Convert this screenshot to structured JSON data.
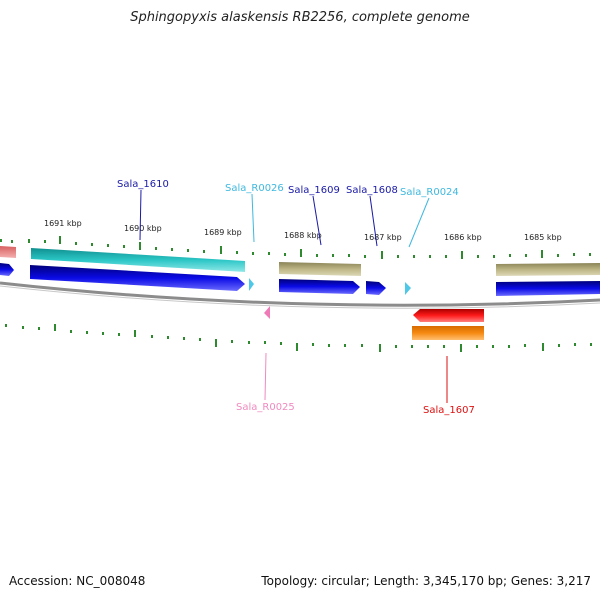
{
  "title": "Sphingopyxis alaskensis RB2256, complete genome",
  "footer": {
    "accession": "Accession: NC_008048",
    "topology": "Topology: circular; Length: 3,345,170 bp; Genes: 3,217"
  },
  "colors": {
    "cds_blue": "#0a0ae6",
    "cds_red": "#ee1111",
    "rrna_cyan": "#4dc8e8",
    "rrna_pink": "#f07ab8",
    "teal_feature": "#21b3b3",
    "olive_feature": "#b8b07c",
    "orange_feature": "#f08a10",
    "backbone": "#8c8c8c",
    "tick_green": "#2f8a2f"
  },
  "ticks": [
    {
      "label": "1691 kbp"
    },
    {
      "label": "1690 kbp"
    },
    {
      "label": "1689 kbp"
    },
    {
      "label": "1688 kbp"
    },
    {
      "label": "1687 kbp"
    },
    {
      "label": "1686 kbp"
    },
    {
      "label": "1685 kbp"
    }
  ],
  "gene_labels": [
    {
      "text": "Sala_1610",
      "color": "#1a1aa8"
    },
    {
      "text": "Sala_R0026",
      "color": "#3fb8e0"
    },
    {
      "text": "Sala_1609",
      "color": "#1a1aa8"
    },
    {
      "text": "Sala_1608",
      "color": "#1a1aa8"
    },
    {
      "text": "Sala_R0024",
      "color": "#3fb8e0"
    },
    {
      "text": "Sala_R0025",
      "color": "#f08ac0"
    },
    {
      "text": "Sala_1607",
      "color": "#dd1111"
    }
  ]
}
